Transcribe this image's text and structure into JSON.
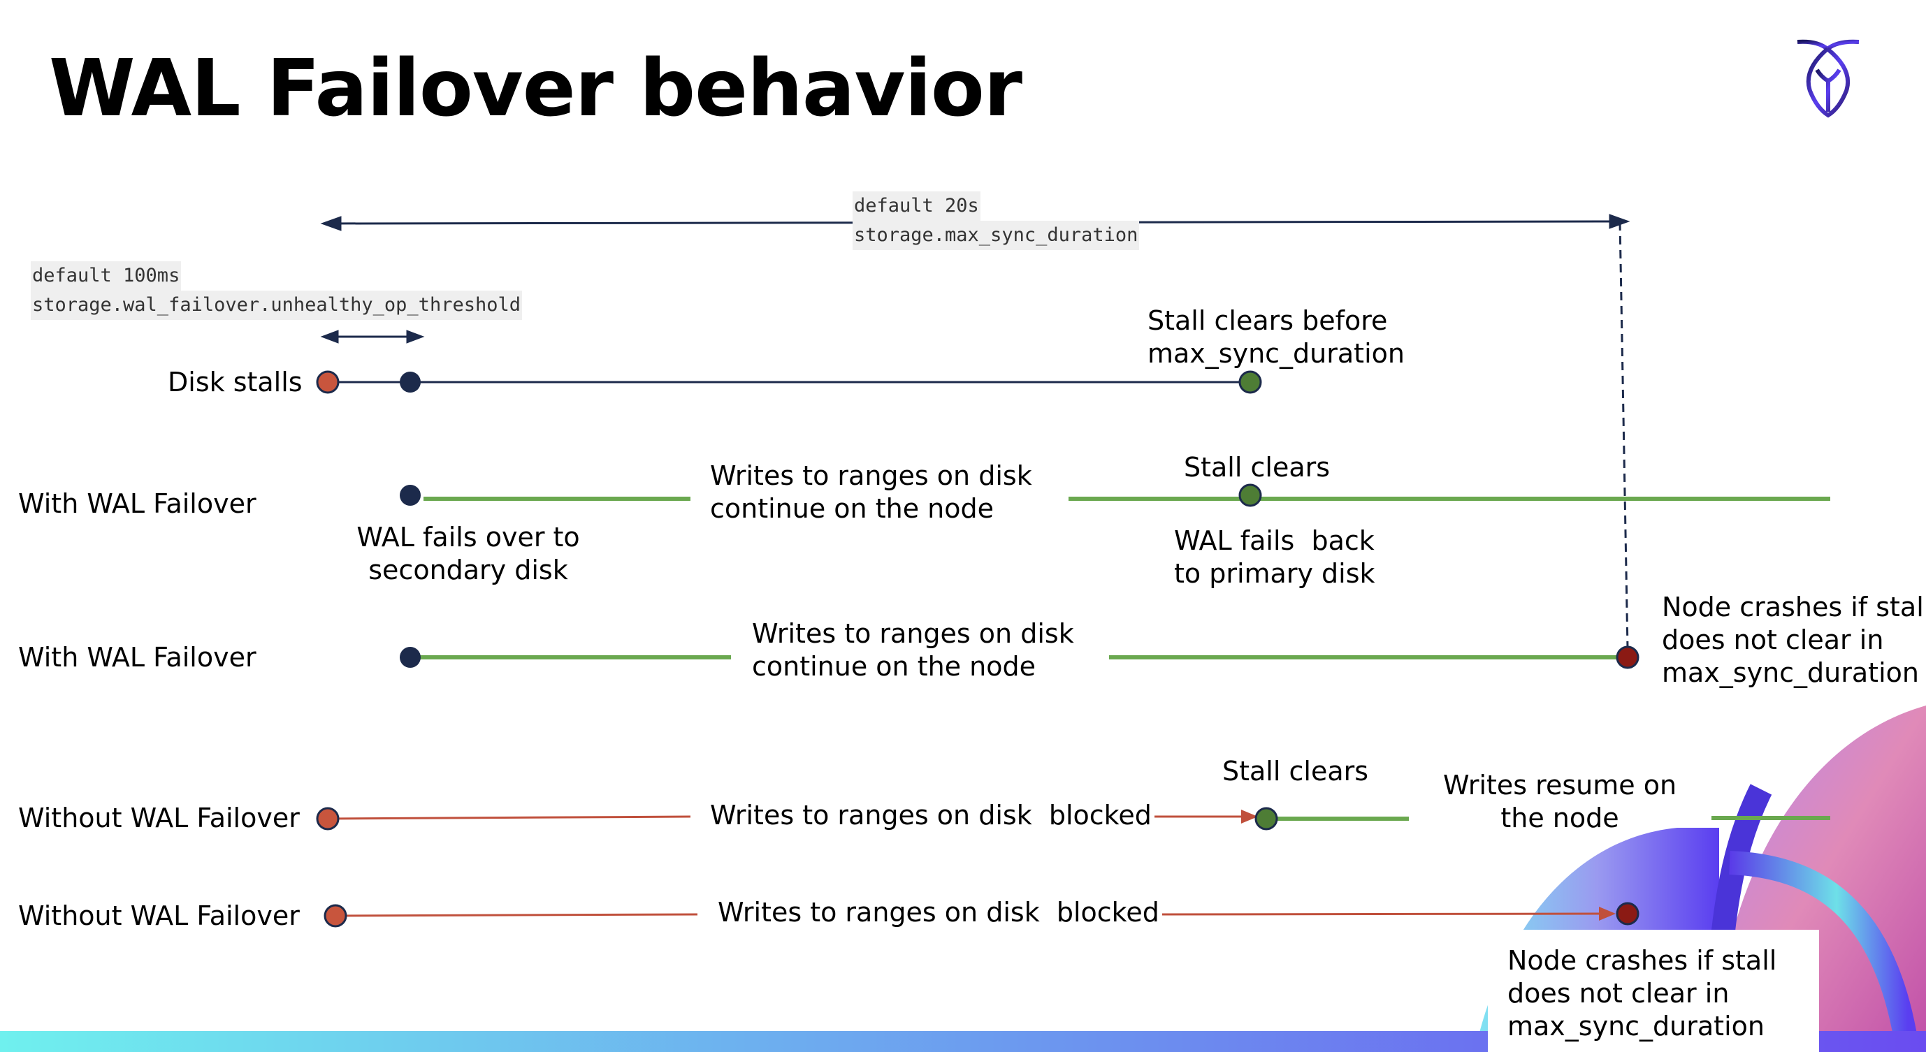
{
  "title": "WAL Failover behavior",
  "settings": {
    "max_sync": {
      "default": "default 20s",
      "name": "storage.max_sync_duration"
    },
    "threshold": {
      "default": "default 100ms",
      "name": "storage.wal_failover.unhealthy_op_threshold"
    }
  },
  "rows": {
    "disk_stalls": {
      "label": "Disk stalls",
      "note": [
        "Stall clears before",
        "max_sync_duration"
      ]
    },
    "with_failover_1": {
      "label": "With WAL Failover",
      "writes": [
        "Writes to ranges on disk",
        "continue on the node"
      ],
      "stall_clears": "Stall clears",
      "fails_over": [
        "WAL fails over to",
        "secondary disk"
      ],
      "fails_back": [
        "WAL fails  back",
        "to primary disk"
      ]
    },
    "with_failover_2": {
      "label": "With WAL Failover",
      "writes": [
        "Writes to ranges on disk",
        "continue on the node"
      ],
      "crash": [
        "Node crashes if stall",
        "does not clear in",
        "max_sync_duration"
      ]
    },
    "without_failover_1": {
      "label": "Without WAL Failover",
      "writes": "Writes to ranges on disk  blocked",
      "stall_clears": "Stall clears",
      "resume": [
        "Writes resume on",
        "the node"
      ]
    },
    "without_failover_2": {
      "label": "Without WAL Failover",
      "writes": "Writes to ranges on disk  blocked",
      "crash": [
        "Node crashes if stall",
        "does not clear in",
        "max_sync_duration"
      ]
    }
  },
  "colors": {
    "navy": "#1c2a4b",
    "stall_start": "#c8553d",
    "clear": "#4e7d35",
    "green_line": "#6aa84f",
    "crash": "#8b1a14",
    "blocked_line": "#c0503c"
  },
  "icons": {
    "logo": "cockroach-logo-icon"
  }
}
